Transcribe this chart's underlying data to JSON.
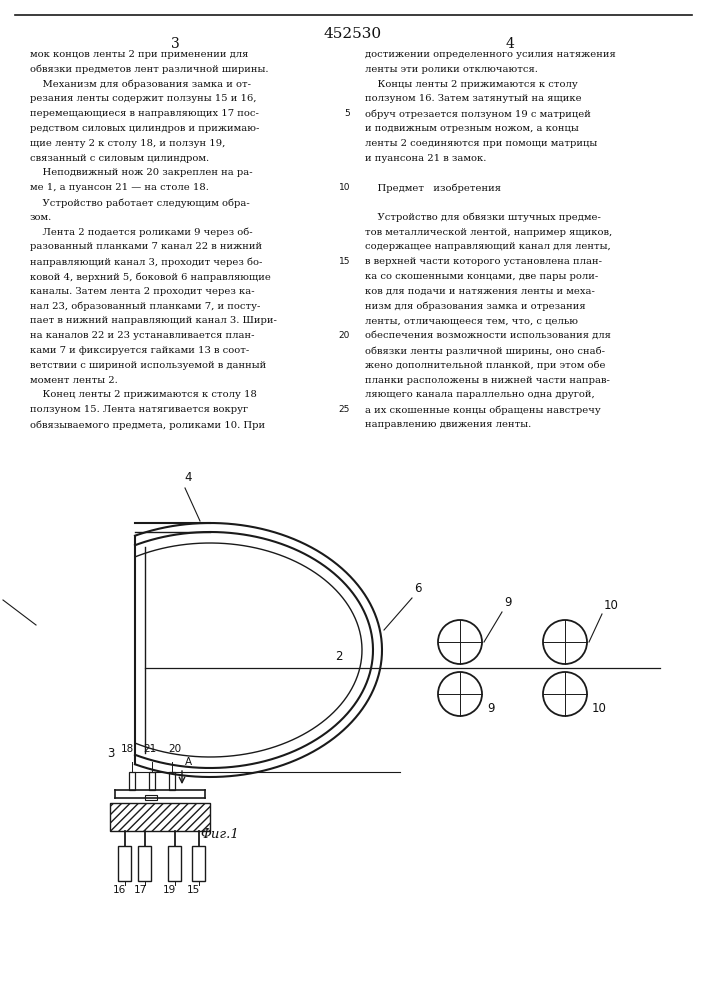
{
  "patent_number": "452530",
  "page_left": "3",
  "page_right": "4",
  "bg_color": "#ffffff",
  "text_color": "#111111",
  "line_color": "#1a1a1a",
  "text_left": [
    "мок концов ленты 2 при применении для",
    "обвязки предметов лент различной ширины.",
    "    Механизм для образования замка и от-",
    "резания ленты содержит ползуны 15 и 16,",
    "перемещающиеся в направляющих 17 пос-",
    "редством силовых цилиндров и прижимаю-",
    "щие ленту 2 к столу 18, и ползун 19,",
    "связанный с силовым цилиндром.",
    "    Неподвижный нож 20 закреплен на ра-",
    "ме 1, а пуансон 21 — на столе 18.",
    "    Устройство работает следующим обра-",
    "зом.",
    "    Лента 2 подается роликами 9 через об-",
    "разованный планками 7 канал 22 в нижний",
    "направляющий канал 3, проходит через бо-",
    "ковой 4, верхний 5, боковой 6 направляющие",
    "каналы. Затем лента 2 проходит через ка-",
    "нал 23, образованный планками 7, и посту-",
    "пает в нижний направляющий канал 3. Шири-",
    "на каналов 22 и 23 устанавливается план-",
    "ками 7 и фиксируется гайками 13 в соот-",
    "ветствии с шириной используемой в данный",
    "момент ленты 2.",
    "    Конец ленты 2 прижимаются к столу 18",
    "ползуном 15. Лента натягивается вокруг",
    "обвязываемого предмета, роликами 10. При"
  ],
  "text_right": [
    "достижении определенного усилия натяжения",
    "ленты эти ролики отключаются.",
    "    Концы ленты 2 прижимаются к столу",
    "ползуном 16. Затем затянутый на ящике",
    "обруч отрезается ползуном 19 с матрицей",
    "и подвижным отрезным ножом, а концы",
    "ленты 2 соединяются при помощи матрицы",
    "и пуансона 21 в замок.",
    "",
    "    Предмет   изобретения",
    "",
    "    Устройство для обвязки штучных предме-",
    "тов металлической лентой, например ящиков,",
    "содержащее направляющий канал для ленты,",
    "в верхней части которого установлена план-",
    "ка со скошенными концами, две пары роли-",
    "ков для подачи и натяжения ленты и меха-",
    "низм для образования замка и отрезания",
    "ленты, отличающееся тем, что, с целью",
    "обеспечения возможности использования для",
    "обвязки ленты различной ширины, оно снаб-",
    "жено дополнительной планкой, при этом обе",
    "планки расположены в нижней части направ-",
    "ляющего канала параллельно одна другой,",
    "а их скошенные концы обращены навстречу",
    "направлению движения ленты."
  ],
  "fig_caption": "Φиг.1"
}
